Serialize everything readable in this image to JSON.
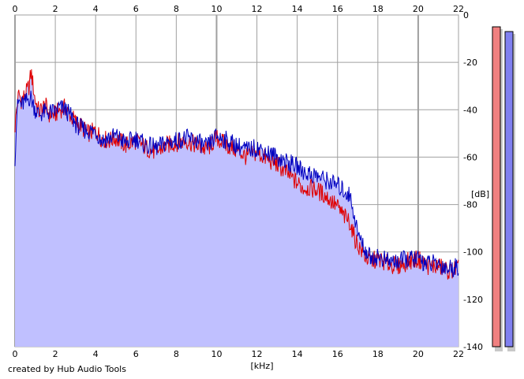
{
  "credit": "created by Hub Audio Tools",
  "chart_data": {
    "type": "line",
    "title": "",
    "xlabel": "[kHz]",
    "ylabel": "[dB]",
    "xlim": [
      0,
      22
    ],
    "ylim": [
      -140,
      0
    ],
    "x_ticks": [
      "0",
      "2",
      "4",
      "6",
      "8",
      "10",
      "12",
      "14",
      "16",
      "18",
      "20",
      "22"
    ],
    "y_ticks": [
      "0",
      "-20",
      "-40",
      "-60",
      "-80",
      "-100",
      "-120",
      "-140"
    ],
    "grid": true,
    "legend": "none",
    "colors": {
      "fill": "#c0c0ff",
      "grid": "#a0a0a0",
      "left_channel": "#e00000",
      "right_channel": "#0000c0",
      "meter_left": "#f08080",
      "meter_right": "#8080f0"
    },
    "series": [
      {
        "x": [
          0.0,
          0.1,
          0.2,
          0.3,
          0.5,
          0.7,
          0.8,
          1.0,
          1.2,
          1.5,
          1.7,
          2.0,
          2.2,
          2.5,
          2.8,
          3.0,
          3.3,
          3.6,
          4.0,
          4.3,
          4.6,
          5.0,
          5.5,
          6.0,
          6.5,
          7.0,
          7.5,
          8.0,
          8.5,
          9.0,
          9.5,
          10.0,
          10.5,
          11.0,
          11.5,
          12.0,
          12.5,
          13.0,
          13.5,
          14.0,
          14.3,
          14.6,
          15.0,
          15.5,
          16.0,
          16.3,
          16.6,
          16.8,
          17.0,
          17.3,
          17.6,
          18.0,
          18.5,
          19.0,
          19.5,
          20.0,
          20.5,
          21.0,
          21.5,
          22.0
        ],
        "values": [
          -47,
          -38,
          -33,
          -36,
          -34,
          -30,
          -24,
          -36,
          -41,
          -38,
          -42,
          -42,
          -40,
          -39,
          -43,
          -45,
          -47,
          -50,
          -49,
          -52,
          -53,
          -52,
          -55,
          -53,
          -56,
          -58,
          -55,
          -54,
          -53,
          -55,
          -57,
          -52,
          -55,
          -57,
          -60,
          -58,
          -61,
          -63,
          -67,
          -71,
          -73,
          -73,
          -74,
          -77,
          -81,
          -85,
          -87,
          -93,
          -97,
          -101,
          -104,
          -103,
          -105,
          -106,
          -104,
          -103,
          -106,
          -106,
          -108,
          -107
        ]
      },
      {
        "x": [
          0.0,
          0.1,
          0.2,
          0.3,
          0.5,
          0.7,
          0.8,
          1.0,
          1.2,
          1.5,
          1.7,
          2.0,
          2.2,
          2.5,
          2.8,
          3.0,
          3.3,
          3.6,
          4.0,
          4.3,
          4.6,
          5.0,
          5.5,
          6.0,
          6.5,
          7.0,
          7.5,
          8.0,
          8.5,
          9.0,
          9.5,
          10.0,
          10.5,
          11.0,
          11.5,
          12.0,
          12.5,
          13.0,
          13.5,
          14.0,
          14.3,
          14.6,
          15.0,
          15.5,
          16.0,
          16.3,
          16.6,
          16.8,
          17.0,
          17.3,
          17.6,
          18.0,
          18.5,
          19.0,
          19.5,
          20.0,
          20.5,
          21.0,
          21.5,
          22.0
        ],
        "values": [
          -60,
          -40,
          -36,
          -38,
          -37,
          -35,
          -35,
          -40,
          -42,
          -41,
          -41,
          -41,
          -39,
          -40,
          -43,
          -46,
          -48,
          -49,
          -49,
          -53,
          -52,
          -51,
          -54,
          -52,
          -55,
          -56,
          -54,
          -53,
          -52,
          -53,
          -56,
          -51,
          -53,
          -55,
          -57,
          -56,
          -58,
          -60,
          -62,
          -64,
          -66,
          -67,
          -68,
          -70,
          -72,
          -74,
          -76,
          -83,
          -92,
          -98,
          -102,
          -102,
          -104,
          -104,
          -103,
          -103,
          -105,
          -105,
          -107,
          -106
        ]
      }
    ],
    "meters": [
      {
        "name": "left",
        "top_db": -5
      },
      {
        "name": "right",
        "top_db": -7
      }
    ]
  }
}
